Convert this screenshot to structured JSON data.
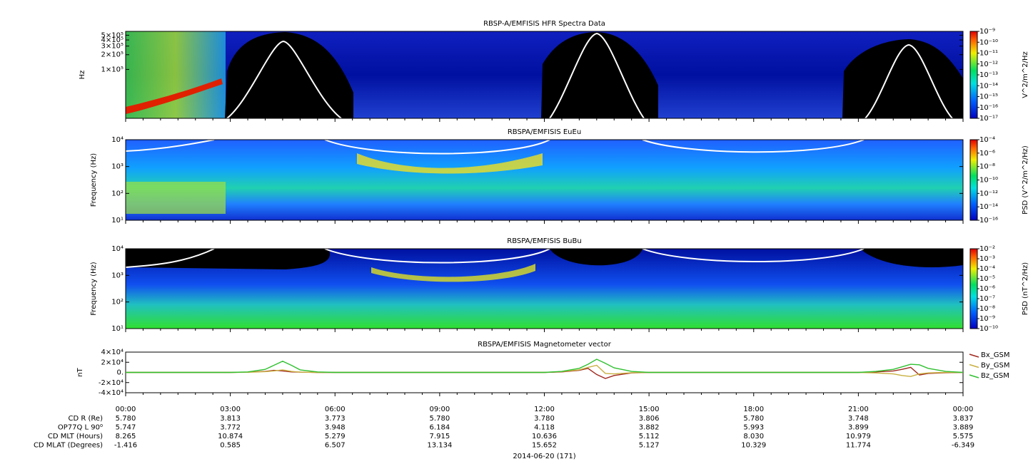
{
  "chart_data": [
    {
      "type": "spectrogram",
      "title": "RBSP-A/EMFISIS  HFR Spectra Data",
      "ylabel": "Hz",
      "ylog": true,
      "ylim": [
        10000,
        600000
      ],
      "yticks": [
        {
          "value": 500000,
          "label": "5×10⁵"
        },
        {
          "value": 400000,
          "label": "4×10⁵"
        },
        {
          "value": 300000,
          "label": "3×10⁵"
        },
        {
          "value": 200000,
          "label": "2×10⁵"
        },
        {
          "value": 100000,
          "label": "1×10⁵"
        }
      ],
      "colorbar_label": "V^2/m^2/Hz",
      "clim": [
        1e-17,
        1e-09
      ],
      "cticks": [
        {
          "value": 1e-09,
          "label": "10⁻⁹"
        },
        {
          "value": 1e-10,
          "label": "10⁻¹⁰"
        },
        {
          "value": 1e-11,
          "label": "10⁻¹¹"
        },
        {
          "value": 1e-12,
          "label": "10⁻¹²"
        },
        {
          "value": 1e-13,
          "label": "10⁻¹³"
        },
        {
          "value": 1e-14,
          "label": "10⁻¹⁴"
        },
        {
          "value": 1e-15,
          "label": "10⁻¹⁵"
        },
        {
          "value": 1e-16,
          "label": "10⁻¹⁶"
        },
        {
          "value": 1e-17,
          "label": "10⁻¹⁷"
        }
      ]
    },
    {
      "type": "spectrogram",
      "title": "RBSPA/EMFISIS  EuEu",
      "ylabel": "Frequency (Hz)",
      "ylog": true,
      "ylim": [
        10,
        10000
      ],
      "yticks": [
        {
          "value": 10000,
          "label": "10⁴"
        },
        {
          "value": 1000,
          "label": "10³"
        },
        {
          "value": 100,
          "label": "10²"
        },
        {
          "value": 10,
          "label": "10¹"
        }
      ],
      "colorbar_label": "PSD (V^2/m^2/Hz)",
      "clim": [
        1e-16,
        0.0001
      ],
      "cticks": [
        {
          "value": 0.0001,
          "label": "10⁻⁴"
        },
        {
          "value": 1e-06,
          "label": "10⁻⁶"
        },
        {
          "value": 1e-08,
          "label": "10⁻⁸"
        },
        {
          "value": 1e-10,
          "label": "10⁻¹⁰"
        },
        {
          "value": 1e-12,
          "label": "10⁻¹²"
        },
        {
          "value": 1e-14,
          "label": "10⁻¹⁴"
        },
        {
          "value": 1e-16,
          "label": "10⁻¹⁶"
        }
      ]
    },
    {
      "type": "spectrogram",
      "title": "RBSPA/EMFISIS  BuBu",
      "ylabel": "Frequency (Hz)",
      "ylog": true,
      "ylim": [
        10,
        10000
      ],
      "yticks": [
        {
          "value": 10000,
          "label": "10⁴"
        },
        {
          "value": 1000,
          "label": "10³"
        },
        {
          "value": 100,
          "label": "10²"
        },
        {
          "value": 10,
          "label": "10¹"
        }
      ],
      "colorbar_label": "PSD (nT^2/Hz)",
      "clim": [
        1e-10,
        0.01
      ],
      "cticks": [
        {
          "value": 0.01,
          "label": "10⁻²"
        },
        {
          "value": 0.001,
          "label": "10⁻³"
        },
        {
          "value": 0.0001,
          "label": "10⁻⁴"
        },
        {
          "value": 1e-05,
          "label": "10⁻⁵"
        },
        {
          "value": 1e-06,
          "label": "10⁻⁶"
        },
        {
          "value": 1e-07,
          "label": "10⁻⁷"
        },
        {
          "value": 1e-08,
          "label": "10⁻⁸"
        },
        {
          "value": 1e-09,
          "label": "10⁻⁹"
        },
        {
          "value": 1e-10,
          "label": "10⁻¹⁰"
        }
      ]
    },
    {
      "type": "line",
      "title": "RBSPA/EMFISIS  Magnetometer vector",
      "ylabel": "nT",
      "xlabel": "2014-06-20 (171)",
      "ylim": [
        -40000,
        40000
      ],
      "yticks": [
        {
          "value": 40000,
          "label": "4×10⁴"
        },
        {
          "value": 20000,
          "label": "2×10⁴"
        },
        {
          "value": 0,
          "label": "0."
        },
        {
          "value": -20000,
          "label": "-2×10⁴"
        },
        {
          "value": -40000,
          "label": "-4×10⁴"
        }
      ],
      "xlim": [
        0,
        24
      ],
      "xticks": [
        {
          "value": 0,
          "label": "00:00"
        },
        {
          "value": 3,
          "label": "03:00"
        },
        {
          "value": 6,
          "label": "06:00"
        },
        {
          "value": 9,
          "label": "09:00"
        },
        {
          "value": 12,
          "label": "12:00"
        },
        {
          "value": 15,
          "label": "15:00"
        },
        {
          "value": 18,
          "label": "18:00"
        },
        {
          "value": 21,
          "label": "21:00"
        },
        {
          "value": 24,
          "label": "00:00"
        }
      ],
      "legend": "right",
      "x": [
        0,
        3,
        3.5,
        4,
        4.25,
        4.5,
        4.75,
        5,
        5.5,
        6,
        12,
        12.5,
        13,
        13.25,
        13.5,
        13.75,
        14,
        14.5,
        15,
        21,
        21.5,
        22,
        22.25,
        22.5,
        22.75,
        23,
        23.5,
        24
      ],
      "series": [
        {
          "name": "Bx_GSM",
          "color": "#a0281e",
          "values": [
            0,
            0,
            500,
            2000,
            4000,
            3000,
            1000,
            500,
            0,
            0,
            0,
            1000,
            4000,
            8000,
            -4000,
            -12000,
            -6000,
            -1000,
            0,
            0,
            1000,
            3000,
            6000,
            10000,
            -5000,
            -2000,
            -500,
            0
          ]
        },
        {
          "name": "By_GSM",
          "color": "#c8b040",
          "values": [
            0,
            0,
            300,
            1500,
            3000,
            5000,
            2000,
            500,
            0,
            0,
            0,
            1500,
            5000,
            10000,
            14000,
            -2000,
            -3000,
            -500,
            0,
            0,
            -1000,
            -3000,
            -6000,
            -8000,
            -3000,
            -1000,
            0,
            0
          ]
        },
        {
          "name": "Bz_GSM",
          "color": "#30c030",
          "values": [
            0,
            0,
            1000,
            6000,
            14000,
            22000,
            14000,
            5000,
            1000,
            0,
            0,
            2000,
            8000,
            16000,
            26000,
            18000,
            9000,
            2000,
            0,
            0,
            2000,
            6000,
            11000,
            16000,
            15000,
            8000,
            2000,
            0
          ]
        }
      ],
      "ephemeris": [
        {
          "label": "CD R (Re)",
          "values": [
            "5.780",
            "3.813",
            "3.773",
            "5.780",
            "3.780",
            "3.806",
            "5.780",
            "3.748",
            "3.837"
          ]
        },
        {
          "label": "OP77Q L 90⁰",
          "values": [
            "5.747",
            "3.772",
            "3.948",
            "6.184",
            "4.118",
            "3.882",
            "5.993",
            "3.899",
            "3.889"
          ]
        },
        {
          "label": "CD MLT (Hours)",
          "values": [
            "8.265",
            "10.874",
            "5.279",
            "7.915",
            "10.636",
            "5.112",
            "8.030",
            "10.979",
            "5.575"
          ]
        },
        {
          "label": "CD MLAT (Degrees)",
          "values": [
            "-1.416",
            "0.585",
            "6.507",
            "13.134",
            "15.652",
            "5.127",
            "10.329",
            "11.774",
            "-6.349"
          ]
        }
      ]
    }
  ]
}
